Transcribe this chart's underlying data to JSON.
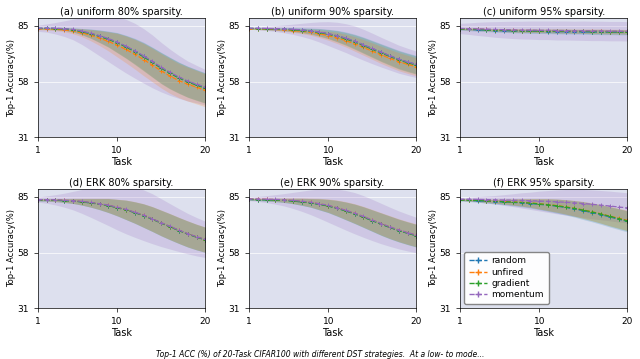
{
  "titles": [
    "(a) uniform 80% sparsity.",
    "(b) uniform 90% sparsity.",
    "(c) uniform 95% sparsity.",
    "(d) ERK 80% sparsity.",
    "(e) ERK 90% sparsity.",
    "(f) ERK 95% sparsity."
  ],
  "xlabel": "Task",
  "ylabel": "Top-1 Accuracy(%)",
  "ylim": [
    31,
    89
  ],
  "yticks": [
    31,
    58,
    85
  ],
  "xticks": [
    1,
    10,
    20
  ],
  "colors": {
    "random": "#1f77b4",
    "unfired": "#ff7f0e",
    "gradient": "#2ca02c",
    "momentum": "#9467bd"
  },
  "legend_labels": [
    "random",
    "unfired",
    "gradient",
    "momentum"
  ],
  "background_color": "#dde0ee",
  "n_tasks": 20,
  "panels": {
    "a_uniform_80": {
      "random": [
        83.8,
        83.9,
        83.8,
        83.6,
        83.1,
        82.3,
        81.3,
        80.1,
        78.7,
        77.0,
        75.0,
        72.8,
        70.3,
        67.5,
        64.7,
        62.2,
        60.0,
        58.0,
        56.5,
        55.0
      ],
      "unfired": [
        83.7,
        83.6,
        83.4,
        83.1,
        82.5,
        81.7,
        80.5,
        79.1,
        77.5,
        75.7,
        73.6,
        71.3,
        68.7,
        66.0,
        63.2,
        60.7,
        58.5,
        56.8,
        55.3,
        53.8
      ],
      "gradient": [
        83.8,
        83.8,
        83.7,
        83.5,
        83.0,
        82.2,
        81.2,
        79.9,
        78.5,
        76.8,
        74.8,
        72.5,
        70.0,
        67.3,
        64.5,
        62.0,
        59.8,
        57.9,
        56.3,
        54.8
      ],
      "momentum": [
        83.9,
        84.0,
        83.9,
        83.7,
        83.3,
        82.5,
        81.5,
        80.3,
        78.9,
        77.2,
        75.2,
        73.0,
        70.5,
        67.8,
        65.0,
        62.5,
        60.3,
        58.3,
        56.8,
        55.3
      ],
      "random_std": [
        0.4,
        0.5,
        0.6,
        0.7,
        1.0,
        1.5,
        2.2,
        3.0,
        3.8,
        4.8,
        5.5,
        6.2,
        6.8,
        7.2,
        7.5,
        7.6,
        7.5,
        7.5,
        7.4,
        7.3
      ],
      "unfired_std": [
        0.5,
        0.6,
        0.7,
        0.9,
        1.3,
        1.9,
        2.7,
        3.6,
        4.6,
        5.7,
        6.5,
        7.2,
        7.8,
        8.1,
        8.3,
        8.4,
        8.3,
        8.2,
        8.1,
        8.0
      ],
      "gradient_std": [
        0.4,
        0.5,
        0.6,
        0.7,
        1.0,
        1.5,
        2.2,
        3.0,
        3.8,
        4.8,
        5.5,
        6.2,
        6.8,
        7.2,
        7.5,
        7.6,
        7.5,
        7.5,
        7.4,
        7.3
      ],
      "momentum_std": [
        1.5,
        2.0,
        2.8,
        3.8,
        5.0,
        6.5,
        8.2,
        9.8,
        11.2,
        12.3,
        13.0,
        13.3,
        13.2,
        12.8,
        12.0,
        11.2,
        10.4,
        9.7,
        9.1,
        8.6
      ]
    },
    "b_uniform_90": {
      "random": [
        83.8,
        83.8,
        83.7,
        83.6,
        83.5,
        83.3,
        83.0,
        82.6,
        82.0,
        81.2,
        80.2,
        79.0,
        77.5,
        75.8,
        74.0,
        72.2,
        70.5,
        68.8,
        67.5,
        66.3
      ],
      "unfired": [
        83.7,
        83.6,
        83.5,
        83.3,
        83.1,
        82.8,
        82.4,
        81.9,
        81.2,
        80.3,
        79.2,
        77.9,
        76.3,
        74.6,
        72.8,
        71.0,
        69.3,
        67.7,
        66.4,
        65.2
      ],
      "gradient": [
        83.8,
        83.7,
        83.6,
        83.5,
        83.3,
        83.1,
        82.8,
        82.4,
        81.8,
        81.0,
        80.0,
        78.7,
        77.2,
        75.5,
        73.7,
        71.9,
        70.2,
        68.5,
        67.2,
        66.0
      ],
      "momentum": [
        83.9,
        83.9,
        83.8,
        83.7,
        83.6,
        83.4,
        83.1,
        82.7,
        82.1,
        81.3,
        80.3,
        79.1,
        77.6,
        75.9,
        74.1,
        72.3,
        70.6,
        68.9,
        67.6,
        66.4
      ],
      "random_std": [
        0.3,
        0.4,
        0.5,
        0.6,
        0.7,
        0.9,
        1.1,
        1.4,
        1.8,
        2.2,
        2.7,
        3.1,
        3.5,
        3.8,
        4.0,
        4.2,
        4.3,
        4.4,
        4.4,
        4.4
      ],
      "unfired_std": [
        0.3,
        0.4,
        0.4,
        0.5,
        0.7,
        0.9,
        1.1,
        1.4,
        1.8,
        2.2,
        2.7,
        3.1,
        3.5,
        3.8,
        4.0,
        4.2,
        4.3,
        4.4,
        4.4,
        4.4
      ],
      "gradient_std": [
        0.3,
        0.4,
        0.5,
        0.6,
        0.7,
        0.9,
        1.1,
        1.4,
        1.8,
        2.2,
        2.7,
        3.1,
        3.5,
        3.8,
        4.0,
        4.2,
        4.3,
        4.4,
        4.4,
        4.4
      ],
      "momentum_std": [
        0.5,
        0.7,
        1.0,
        1.4,
        1.9,
        2.5,
        3.2,
        4.0,
        4.9,
        5.8,
        6.5,
        7.0,
        7.4,
        7.5,
        7.4,
        7.2,
        7.0,
        6.8,
        6.6,
        6.4
      ]
    },
    "c_uniform_95": {
      "random": [
        83.5,
        83.3,
        83.1,
        83.0,
        82.8,
        82.7,
        82.6,
        82.5,
        82.4,
        82.4,
        82.3,
        82.3,
        82.2,
        82.2,
        82.1,
        82.1,
        82.0,
        82.0,
        81.9,
        81.9
      ],
      "unfired": [
        83.7,
        83.5,
        83.4,
        83.3,
        83.1,
        83.0,
        82.9,
        82.8,
        82.8,
        82.7,
        82.7,
        82.6,
        82.6,
        82.5,
        82.5,
        82.4,
        82.4,
        82.3,
        82.3,
        82.2
      ],
      "gradient": [
        83.6,
        83.5,
        83.3,
        83.2,
        83.0,
        82.9,
        82.8,
        82.7,
        82.7,
        82.6,
        82.6,
        82.5,
        82.5,
        82.4,
        82.4,
        82.3,
        82.3,
        82.2,
        82.2,
        82.1
      ],
      "momentum": [
        83.8,
        83.7,
        83.6,
        83.5,
        83.3,
        83.2,
        83.1,
        83.0,
        83.0,
        82.9,
        82.9,
        82.8,
        82.8,
        82.7,
        82.7,
        82.6,
        82.6,
        82.5,
        82.5,
        82.4
      ],
      "random_std": [
        0.5,
        0.6,
        0.7,
        0.7,
        0.8,
        0.8,
        0.9,
        0.9,
        1.0,
        1.0,
        1.0,
        1.1,
        1.1,
        1.1,
        1.1,
        1.2,
        1.2,
        1.2,
        1.2,
        1.2
      ],
      "unfired_std": [
        0.4,
        0.5,
        0.6,
        0.6,
        0.7,
        0.7,
        0.8,
        0.8,
        0.9,
        0.9,
        0.9,
        1.0,
        1.0,
        1.0,
        1.0,
        1.1,
        1.1,
        1.1,
        1.1,
        1.1
      ],
      "gradient_std": [
        0.4,
        0.5,
        0.6,
        0.6,
        0.7,
        0.7,
        0.8,
        0.8,
        0.9,
        0.9,
        0.9,
        1.0,
        1.0,
        1.0,
        1.0,
        1.1,
        1.1,
        1.1,
        1.1,
        1.1
      ],
      "momentum_std": [
        2.5,
        2.8,
        3.2,
        3.5,
        3.8,
        4.0,
        4.2,
        4.3,
        4.4,
        4.5,
        4.5,
        4.6,
        4.6,
        4.6,
        4.7,
        4.7,
        4.7,
        4.7,
        4.7,
        4.7
      ]
    },
    "d_erk_80": {
      "random": [
        83.5,
        83.5,
        83.4,
        83.2,
        83.0,
        82.6,
        82.1,
        81.5,
        80.8,
        79.8,
        78.7,
        77.4,
        75.9,
        74.2,
        72.3,
        70.5,
        68.7,
        67.0,
        65.5,
        64.2
      ],
      "unfired": [
        83.6,
        83.6,
        83.5,
        83.3,
        83.1,
        82.7,
        82.2,
        81.6,
        80.9,
        79.9,
        78.8,
        77.5,
        76.0,
        74.3,
        72.4,
        70.6,
        68.8,
        67.1,
        65.6,
        64.3
      ],
      "gradient": [
        83.5,
        83.5,
        83.4,
        83.2,
        83.0,
        82.6,
        82.1,
        81.5,
        80.8,
        79.8,
        78.7,
        77.4,
        75.9,
        74.2,
        72.3,
        70.5,
        68.7,
        67.0,
        65.5,
        64.2
      ],
      "momentum": [
        83.7,
        83.7,
        83.6,
        83.4,
        83.2,
        82.8,
        82.3,
        81.7,
        81.0,
        80.0,
        78.9,
        77.6,
        76.1,
        74.4,
        72.5,
        70.7,
        68.9,
        67.2,
        65.7,
        64.4
      ],
      "random_std": [
        0.5,
        0.6,
        0.7,
        0.9,
        1.2,
        1.6,
        2.1,
        2.7,
        3.4,
        4.0,
        4.7,
        5.2,
        5.7,
        6.0,
        6.2,
        6.3,
        6.3,
        6.3,
        6.2,
        6.1
      ],
      "unfired_std": [
        0.4,
        0.5,
        0.7,
        0.9,
        1.2,
        1.6,
        2.1,
        2.7,
        3.4,
        4.0,
        4.7,
        5.2,
        5.7,
        6.0,
        6.2,
        6.3,
        6.3,
        6.3,
        6.2,
        6.1
      ],
      "gradient_std": [
        0.5,
        0.6,
        0.7,
        0.9,
        1.2,
        1.6,
        2.1,
        2.7,
        3.4,
        4.0,
        4.7,
        5.2,
        5.7,
        6.0,
        6.2,
        6.3,
        6.3,
        6.3,
        6.2,
        6.1
      ],
      "momentum_std": [
        1.2,
        1.8,
        2.5,
        3.4,
        4.5,
        5.8,
        7.2,
        8.6,
        9.9,
        11.0,
        11.8,
        12.2,
        12.3,
        12.1,
        11.6,
        11.0,
        10.4,
        9.8,
        9.3,
        8.8
      ]
    },
    "e_erk_90": {
      "random": [
        83.8,
        83.7,
        83.6,
        83.5,
        83.3,
        83.0,
        82.6,
        82.1,
        81.4,
        80.6,
        79.5,
        78.2,
        76.8,
        75.2,
        73.5,
        71.8,
        70.2,
        68.7,
        67.4,
        66.2
      ],
      "unfired": [
        83.9,
        83.9,
        83.8,
        83.7,
        83.5,
        83.2,
        82.8,
        82.3,
        81.6,
        80.8,
        79.7,
        78.4,
        77.0,
        75.4,
        73.7,
        72.0,
        70.4,
        68.9,
        67.6,
        66.4
      ],
      "gradient": [
        83.8,
        83.7,
        83.6,
        83.5,
        83.3,
        83.0,
        82.6,
        82.1,
        81.4,
        80.6,
        79.5,
        78.2,
        76.8,
        75.2,
        73.5,
        71.8,
        70.2,
        68.7,
        67.4,
        66.2
      ],
      "momentum": [
        84.0,
        84.0,
        83.9,
        83.8,
        83.6,
        83.3,
        82.9,
        82.4,
        81.7,
        80.9,
        79.8,
        78.5,
        77.1,
        75.5,
        73.8,
        72.1,
        70.5,
        69.0,
        67.7,
        66.5
      ],
      "random_std": [
        0.4,
        0.5,
        0.6,
        0.8,
        1.0,
        1.3,
        1.7,
        2.1,
        2.7,
        3.2,
        3.8,
        4.3,
        4.7,
        5.0,
        5.2,
        5.4,
        5.5,
        5.5,
        5.5,
        5.5
      ],
      "unfired_std": [
        0.3,
        0.4,
        0.6,
        0.7,
        1.0,
        1.3,
        1.7,
        2.1,
        2.7,
        3.2,
        3.8,
        4.3,
        4.7,
        5.0,
        5.2,
        5.4,
        5.5,
        5.5,
        5.5,
        5.5
      ],
      "gradient_std": [
        0.4,
        0.5,
        0.6,
        0.8,
        1.0,
        1.3,
        1.7,
        2.1,
        2.7,
        3.2,
        3.8,
        4.3,
        4.7,
        5.0,
        5.2,
        5.4,
        5.5,
        5.5,
        5.5,
        5.5
      ],
      "momentum_std": [
        0.8,
        1.2,
        1.7,
        2.3,
        3.0,
        3.9,
        4.9,
        6.0,
        7.1,
        8.2,
        9.0,
        9.6,
        10.0,
        10.1,
        10.0,
        9.8,
        9.5,
        9.2,
        8.9,
        8.6
      ]
    },
    "f_erk_95": {
      "random": [
        83.5,
        83.3,
        83.1,
        82.9,
        82.7,
        82.5,
        82.3,
        82.1,
        81.8,
        81.4,
        81.0,
        80.5,
        79.9,
        79.2,
        78.3,
        77.4,
        76.4,
        75.3,
        74.2,
        73.1
      ],
      "unfired": [
        83.7,
        83.5,
        83.4,
        83.2,
        83.0,
        82.8,
        82.6,
        82.4,
        82.1,
        81.7,
        81.3,
        80.8,
        80.2,
        79.5,
        78.7,
        77.8,
        76.8,
        75.7,
        74.7,
        73.6
      ],
      "gradient": [
        83.6,
        83.4,
        83.3,
        83.1,
        82.9,
        82.7,
        82.5,
        82.3,
        82.0,
        81.6,
        81.2,
        80.7,
        80.1,
        79.4,
        78.6,
        77.7,
        76.7,
        75.6,
        74.5,
        73.4
      ],
      "momentum": [
        83.9,
        83.9,
        83.8,
        83.7,
        83.6,
        83.5,
        83.4,
        83.3,
        83.1,
        83.0,
        82.8,
        82.6,
        82.4,
        82.1,
        81.8,
        81.4,
        81.0,
        80.6,
        80.1,
        79.7
      ],
      "random_std": [
        0.5,
        0.6,
        0.7,
        0.9,
        1.1,
        1.3,
        1.6,
        1.9,
        2.2,
        2.6,
        3.0,
        3.4,
        3.7,
        4.0,
        4.3,
        4.5,
        4.7,
        4.9,
        5.0,
        5.1
      ],
      "unfired_std": [
        0.4,
        0.5,
        0.6,
        0.8,
        1.0,
        1.2,
        1.5,
        1.8,
        2.1,
        2.5,
        2.9,
        3.2,
        3.5,
        3.8,
        4.1,
        4.3,
        4.5,
        4.7,
        4.8,
        4.9
      ],
      "gradient_std": [
        0.4,
        0.5,
        0.6,
        0.8,
        1.0,
        1.2,
        1.5,
        1.8,
        2.1,
        2.5,
        2.9,
        3.2,
        3.5,
        3.8,
        4.1,
        4.3,
        4.5,
        4.7,
        4.8,
        4.9
      ],
      "momentum_std": [
        0.6,
        0.9,
        1.3,
        1.7,
        2.1,
        2.6,
        3.1,
        3.7,
        4.2,
        4.8,
        5.3,
        5.8,
        6.2,
        6.5,
        6.8,
        7.0,
        7.1,
        7.2,
        7.3,
        7.3
      ]
    }
  },
  "caption": "Top-1 ACC (%) of 20-Task CIFAR100 with different DST strategies.  At a low- to mode..."
}
